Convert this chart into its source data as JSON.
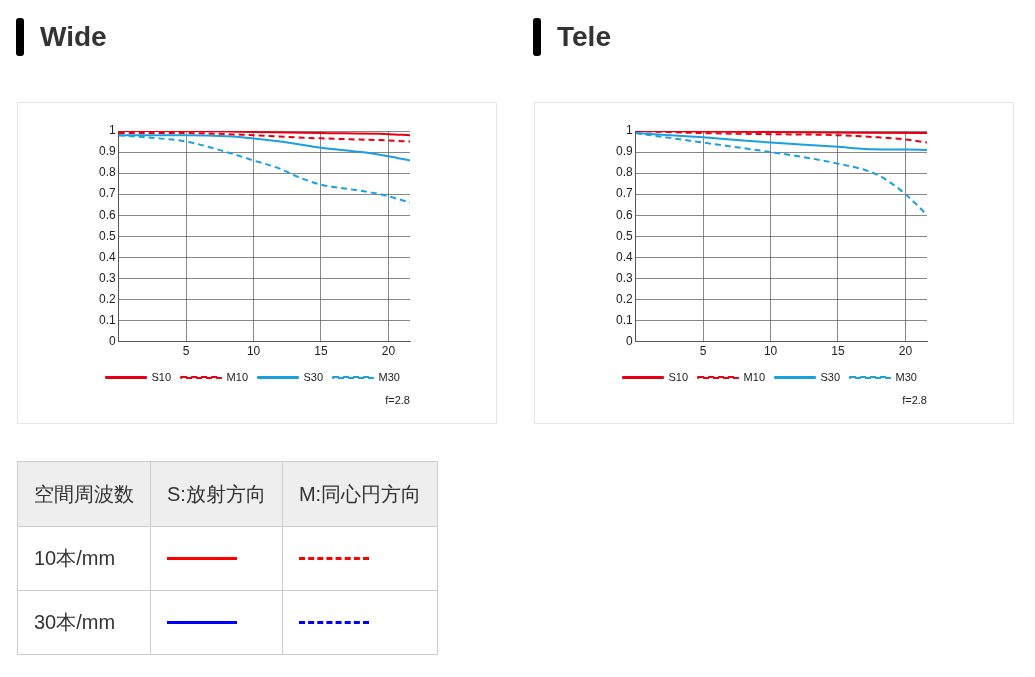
{
  "chart_data": [
    {
      "type": "line",
      "title": "Wide",
      "xlim": [
        0,
        21.6
      ],
      "ylim": [
        0,
        1
      ],
      "xticks": [
        5,
        10,
        15,
        20
      ],
      "yticks": [
        0,
        0.1,
        0.2,
        0.3,
        0.4,
        0.5,
        0.6,
        0.7,
        0.8,
        0.9,
        1
      ],
      "grid": true,
      "legend": "bottom",
      "annotations": [
        "f=2.8"
      ],
      "series": [
        {
          "name": "S10",
          "color": "#e60012",
          "line_style": "solid",
          "x": [
            0,
            5,
            10,
            15,
            20,
            21.6
          ],
          "values": [
            1,
            1,
            0.995,
            0.99,
            0.985,
            0.98
          ]
        },
        {
          "name": "M10",
          "color": "#e60012",
          "line_style": "dashed",
          "x": [
            0,
            5,
            10,
            13,
            15,
            20,
            21.6
          ],
          "values": [
            0.99,
            0.99,
            0.98,
            0.97,
            0.965,
            0.955,
            0.95
          ]
        },
        {
          "name": "S30",
          "color": "#1aa0e0",
          "line_style": "solid",
          "x": [
            0,
            5,
            8,
            10,
            12,
            15,
            18,
            20,
            21.6
          ],
          "values": [
            0.98,
            0.98,
            0.975,
            0.965,
            0.95,
            0.92,
            0.9,
            0.88,
            0.86
          ]
        },
        {
          "name": "M30",
          "color": "#1aa0e0",
          "line_style": "dashed",
          "x": [
            0,
            3,
            5,
            8,
            10,
            12,
            13,
            15,
            17,
            19,
            20,
            21.6
          ],
          "values": [
            0.98,
            0.965,
            0.95,
            0.9,
            0.86,
            0.82,
            0.79,
            0.745,
            0.725,
            0.705,
            0.69,
            0.66
          ]
        }
      ]
    },
    {
      "type": "line",
      "title": "Tele",
      "xlim": [
        0,
        21.6
      ],
      "ylim": [
        0,
        1
      ],
      "xticks": [
        5,
        10,
        15,
        20
      ],
      "yticks": [
        0,
        0.1,
        0.2,
        0.3,
        0.4,
        0.5,
        0.6,
        0.7,
        0.8,
        0.9,
        1
      ],
      "grid": true,
      "legend": "bottom",
      "annotations": [
        "f=2.8"
      ],
      "series": [
        {
          "name": "S10",
          "color": "#e60012",
          "line_style": "solid",
          "x": [
            0,
            10,
            21.6
          ],
          "values": [
            1,
            0.995,
            0.99
          ]
        },
        {
          "name": "M10",
          "color": "#e60012",
          "line_style": "dashed",
          "x": [
            0,
            5,
            10,
            15,
            18,
            20,
            21.6
          ],
          "values": [
            1,
            0.99,
            0.985,
            0.98,
            0.97,
            0.96,
            0.945
          ]
        },
        {
          "name": "S30",
          "color": "#1aa0e0",
          "line_style": "solid",
          "x": [
            0,
            5,
            10,
            15,
            17,
            20,
            21.6
          ],
          "values": [
            0.99,
            0.97,
            0.945,
            0.925,
            0.915,
            0.912,
            0.91
          ]
        },
        {
          "name": "M30",
          "color": "#1aa0e0",
          "line_style": "dashed",
          "x": [
            0,
            5,
            10,
            13,
            15,
            17,
            18,
            19,
            20,
            21,
            21.6
          ],
          "values": [
            0.99,
            0.945,
            0.9,
            0.87,
            0.845,
            0.815,
            0.79,
            0.75,
            0.7,
            0.64,
            0.6
          ]
        }
      ]
    },
    {
      "type": "other",
      "annotations": [
        "空間周波数",
        "S:放射方向",
        "M:同心円方向",
        "10本/mm",
        "30本/mm"
      ]
    }
  ]
}
